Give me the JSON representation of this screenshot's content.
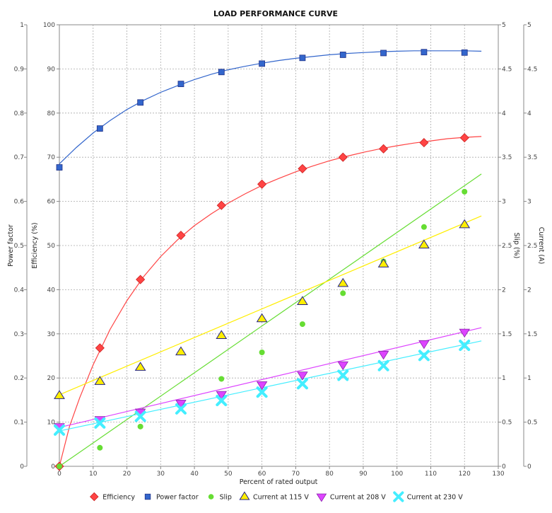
{
  "chart_data": {
    "type": "scatter",
    "title": "LOAD PERFORMANCE CURVE",
    "xlabel": "Percent of rated output",
    "xlim": [
      0,
      130
    ],
    "xticks": [
      0,
      10,
      20,
      30,
      40,
      50,
      60,
      70,
      80,
      90,
      100,
      110,
      120,
      130
    ],
    "grid": true,
    "legend_position": "bottom",
    "axes": {
      "power_factor": {
        "label": "Power factor",
        "side": "left-outer",
        "range": [
          0,
          1
        ],
        "ticks": [
          "0",
          "0.1",
          "0.2",
          "0.3",
          "0.4",
          "0.5",
          "0.6",
          "0.7",
          "0.8",
          "0.9",
          "1"
        ]
      },
      "efficiency": {
        "label": "Efficiency (%)",
        "side": "left-inner",
        "range": [
          0,
          100
        ],
        "ticks": [
          "0",
          "10",
          "20",
          "30",
          "40",
          "50",
          "60",
          "70",
          "80",
          "90",
          "100"
        ]
      },
      "slip": {
        "label": "Slip (%)",
        "side": "right-inner",
        "range": [
          0,
          5
        ],
        "ticks": [
          "0",
          "0.5",
          "1",
          "1.5",
          "2",
          "2.5",
          "3",
          "3.5",
          "4",
          "4.5",
          "5"
        ]
      },
      "current": {
        "label": "Current (A)",
        "side": "right-outer",
        "range": [
          0,
          10
        ],
        "ticks": [
          "0",
          "0.5",
          "1",
          "1.5",
          "2",
          "2.5",
          "3",
          "3.5",
          "4",
          "4.5",
          "5"
        ]
      }
    },
    "series": [
      {
        "name": "Efficiency",
        "axis": "efficiency",
        "color": "#ff4444",
        "marker": "diamond",
        "points": [
          [
            0,
            0
          ],
          [
            12,
            26.8
          ],
          [
            24,
            42.3
          ],
          [
            36,
            52.3
          ],
          [
            48,
            59.1
          ],
          [
            60,
            63.9
          ],
          [
            72,
            67.4
          ],
          [
            84,
            70.0
          ],
          [
            96,
            71.9
          ],
          [
            108,
            73.3
          ],
          [
            120,
            74.4
          ]
        ],
        "curve": [
          [
            0,
            0
          ],
          [
            3,
            9
          ],
          [
            6,
            15.5
          ],
          [
            10,
            23
          ],
          [
            15,
            31
          ],
          [
            20,
            37.5
          ],
          [
            25,
            43
          ],
          [
            30,
            47.5
          ],
          [
            35,
            51.3
          ],
          [
            40,
            54.5
          ],
          [
            45,
            57.2
          ],
          [
            50,
            59.6
          ],
          [
            55,
            61.7
          ],
          [
            60,
            63.6
          ],
          [
            65,
            65.2
          ],
          [
            70,
            66.7
          ],
          [
            75,
            68
          ],
          [
            80,
            69.2
          ],
          [
            85,
            70.2
          ],
          [
            90,
            71.1
          ],
          [
            95,
            71.9
          ],
          [
            100,
            72.6
          ],
          [
            105,
            73.2
          ],
          [
            110,
            73.7
          ],
          [
            115,
            74.2
          ],
          [
            120,
            74.5
          ],
          [
            125,
            74.7
          ]
        ]
      },
      {
        "name": "Power factor",
        "axis": "power_factor",
        "color": "#3366cc",
        "marker": "square",
        "points": [
          [
            0,
            0.677
          ],
          [
            12,
            0.765
          ],
          [
            24,
            0.824
          ],
          [
            36,
            0.866
          ],
          [
            48,
            0.893
          ],
          [
            60,
            0.912
          ],
          [
            72,
            0.925
          ],
          [
            84,
            0.932
          ],
          [
            96,
            0.936
          ],
          [
            108,
            0.938
          ],
          [
            120,
            0.937
          ]
        ],
        "curve": [
          [
            0,
            0.685
          ],
          [
            5,
            0.722
          ],
          [
            10,
            0.755
          ],
          [
            15,
            0.783
          ],
          [
            20,
            0.808
          ],
          [
            25,
            0.829
          ],
          [
            30,
            0.847
          ],
          [
            35,
            0.862
          ],
          [
            40,
            0.876
          ],
          [
            45,
            0.888
          ],
          [
            50,
            0.898
          ],
          [
            55,
            0.906
          ],
          [
            60,
            0.913
          ],
          [
            65,
            0.919
          ],
          [
            70,
            0.924
          ],
          [
            75,
            0.928
          ],
          [
            80,
            0.932
          ],
          [
            85,
            0.935
          ],
          [
            90,
            0.937
          ],
          [
            95,
            0.939
          ],
          [
            100,
            0.94
          ],
          [
            105,
            0.941
          ],
          [
            110,
            0.941
          ],
          [
            115,
            0.941
          ],
          [
            120,
            0.941
          ],
          [
            125,
            0.94
          ]
        ]
      },
      {
        "name": "Slip",
        "axis": "slip",
        "color": "#66dd33",
        "marker": "circle",
        "points": [
          [
            0,
            0
          ],
          [
            12,
            0.21
          ],
          [
            24,
            0.45
          ],
          [
            36,
            0.71
          ],
          [
            48,
            0.99
          ],
          [
            60,
            1.29
          ],
          [
            72,
            1.61
          ],
          [
            84,
            1.96
          ],
          [
            96,
            2.32
          ],
          [
            108,
            2.71
          ],
          [
            120,
            3.11
          ]
        ],
        "curve": [
          [
            0,
            0
          ],
          [
            125,
            3.31
          ]
        ]
      },
      {
        "name": "Current at 115 V",
        "axis": "current",
        "color": "#ffee00",
        "marker": "triangle-up",
        "points": [
          [
            0,
            1.6
          ],
          [
            12,
            1.92
          ],
          [
            24,
            2.24
          ],
          [
            36,
            2.59
          ],
          [
            48,
            2.96
          ],
          [
            60,
            3.34
          ],
          [
            72,
            3.73
          ],
          [
            84,
            4.14
          ],
          [
            96,
            4.58
          ],
          [
            108,
            5.01
          ],
          [
            120,
            5.47
          ]
        ],
        "curve": [
          [
            0,
            1.62
          ],
          [
            125,
            5.67
          ]
        ]
      },
      {
        "name": "Current at 208 V",
        "axis": "current",
        "color": "#dd44ff",
        "marker": "triangle-down",
        "points": [
          [
            0,
            0.9
          ],
          [
            12,
            1.06
          ],
          [
            24,
            1.23
          ],
          [
            36,
            1.43
          ],
          [
            48,
            1.63
          ],
          [
            60,
            1.85
          ],
          [
            72,
            2.07
          ],
          [
            84,
            2.3
          ],
          [
            96,
            2.54
          ],
          [
            108,
            2.78
          ],
          [
            120,
            3.04
          ]
        ],
        "curve": [
          [
            0,
            0.88
          ],
          [
            125,
            3.14
          ]
        ]
      },
      {
        "name": "Current at 230 V",
        "axis": "current",
        "color": "#44eeff",
        "marker": "x",
        "points": [
          [
            0,
            0.82
          ],
          [
            12,
            0.98
          ],
          [
            24,
            1.13
          ],
          [
            36,
            1.3
          ],
          [
            48,
            1.49
          ],
          [
            60,
            1.68
          ],
          [
            72,
            1.87
          ],
          [
            84,
            2.06
          ],
          [
            96,
            2.28
          ],
          [
            108,
            2.51
          ],
          [
            120,
            2.74
          ]
        ],
        "curve": [
          [
            0,
            0.8
          ],
          [
            125,
            2.84
          ]
        ]
      }
    ]
  }
}
